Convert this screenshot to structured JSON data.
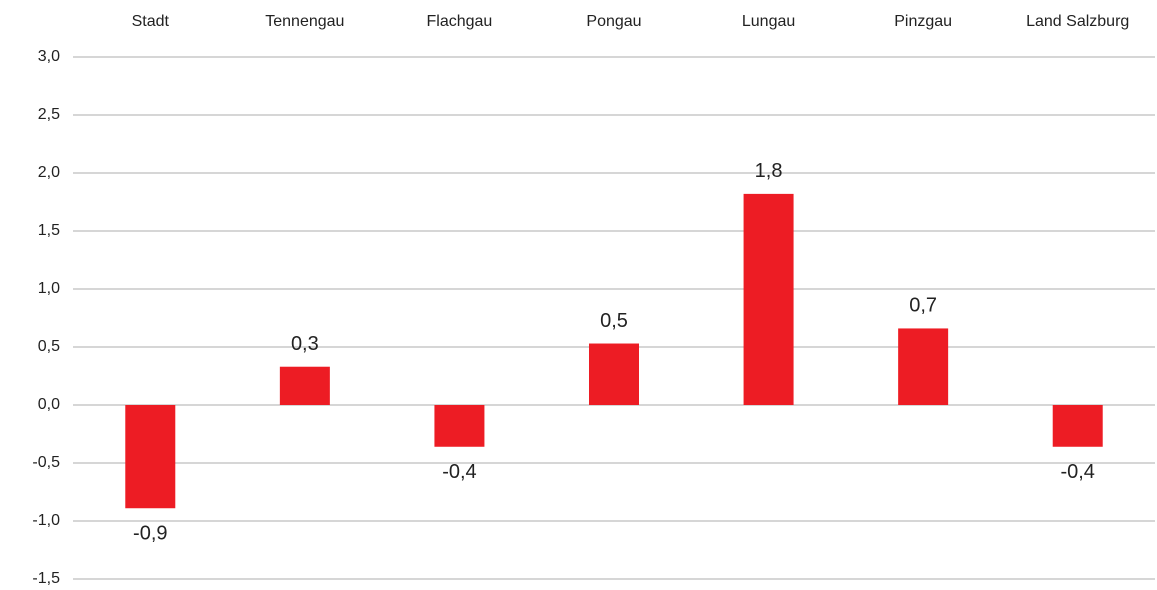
{
  "chart_data": {
    "type": "bar",
    "categories": [
      "Stadt",
      "Tennengau",
      "Flachgau",
      "Pongau",
      "Lungau",
      "Pinzgau",
      "Land Salzburg"
    ],
    "values": [
      -0.89,
      0.33,
      -0.36,
      0.53,
      1.82,
      0.66,
      -0.36
    ],
    "value_labels": [
      "-0,9",
      "0,3",
      "-0,4",
      "0,5",
      "1,8",
      "0,7",
      "-0,4"
    ],
    "color": "#ed1c24",
    "ylim": [
      -1.5,
      3.0
    ],
    "yticks": [
      {
        "value": -1.5,
        "label": "-1,5"
      },
      {
        "value": -1.0,
        "label": "-1,0"
      },
      {
        "value": -0.5,
        "label": "-0,5"
      },
      {
        "value": 0,
        "label": "0,0"
      },
      {
        "value": 0.5,
        "label": "0,5"
      },
      {
        "value": 1.0,
        "label": "1,0"
      },
      {
        "value": 1.5,
        "label": "1,5"
      },
      {
        "value": 2.0,
        "label": "2,0"
      },
      {
        "value": 2.5,
        "label": "2,5"
      },
      {
        "value": 3.0,
        "label": "3,0"
      }
    ],
    "grid": true
  }
}
